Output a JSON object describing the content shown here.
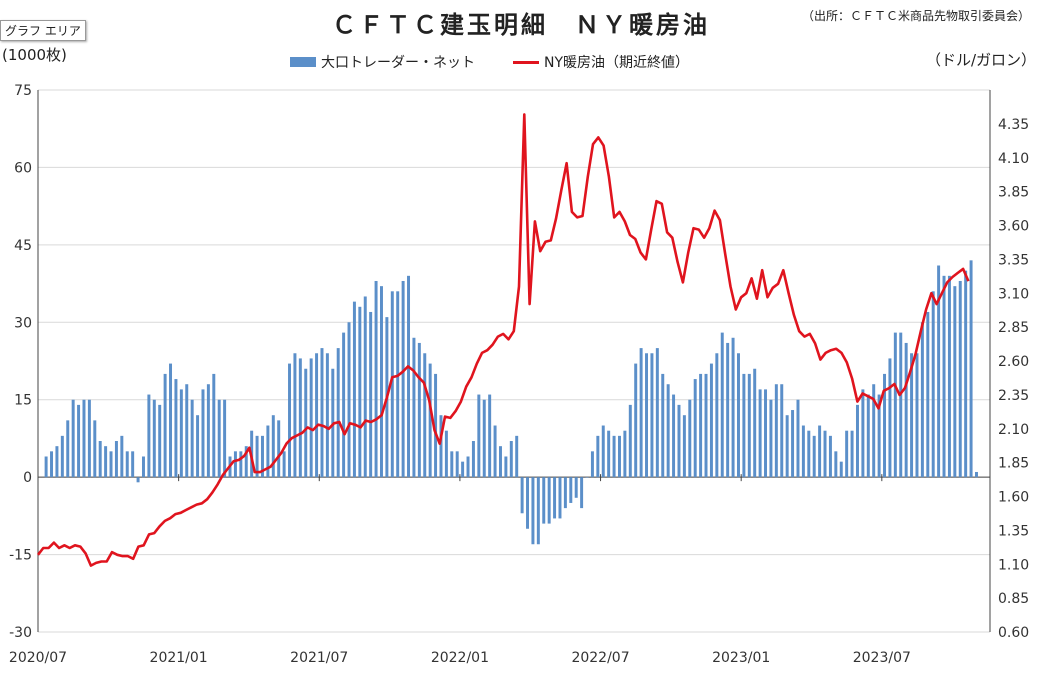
{
  "header": {
    "title": "ＣＦＴＣ建玉明細　ＮＹ暖房油",
    "source": "（出所：ＣＦＴＣ米商品先物取引委員会）",
    "area_tag": "グラフ エリア",
    "unit_left": "(1000枚)",
    "unit_right": "（ドル/ガロン）"
  },
  "legend": {
    "bar_label": "大口トレーダー・ネット",
    "line_label": "NY暖房油（期近終値）"
  },
  "colors": {
    "bar": "#5b8fc9",
    "line": "#e0141e",
    "grid": "#d9d9d9"
  },
  "chart_data": {
    "type": "bar+line",
    "title": "ＣＦＴＣ建玉明細　ＮＹ暖房油",
    "x_ticks": [
      "2020/07",
      "2021/01",
      "2021/07",
      "2022/01",
      "2022/07",
      "2023/01",
      "2023/07"
    ],
    "x_range": [
      0,
      176
    ],
    "y_left": {
      "label": "(1000枚)",
      "range": [
        -30,
        75
      ],
      "ticks": [
        -30,
        -15,
        0,
        15,
        30,
        45,
        60,
        75
      ]
    },
    "y_right": {
      "label": "（ドル/ガロン）",
      "range": [
        0.6,
        4.6
      ],
      "ticks": [
        "0.60",
        "0.85",
        "1.10",
        "1.35",
        "1.60",
        "1.85",
        "2.10",
        "2.35",
        "2.60",
        "2.85",
        "3.10",
        "3.35",
        "3.60",
        "3.85",
        "4.10",
        "4.35"
      ]
    },
    "series": [
      {
        "name": "大口トレーダー・ネット",
        "axis": "left",
        "kind": "bar",
        "values": [
          4,
          5,
          6,
          8,
          11,
          15,
          14,
          15,
          15,
          11,
          7,
          6,
          5,
          7,
          8,
          5,
          5,
          -1,
          4,
          16,
          15,
          14,
          20,
          22,
          19,
          17,
          18,
          15,
          12,
          17,
          18,
          20,
          15,
          15,
          4,
          5,
          5,
          6,
          9,
          8,
          8,
          10,
          12,
          11,
          5,
          22,
          24,
          23,
          21,
          23,
          24,
          25,
          24,
          21,
          25,
          28,
          30,
          34,
          33,
          35,
          32,
          38,
          37,
          31,
          36,
          36,
          38,
          39,
          27,
          26,
          24,
          22,
          20,
          12,
          9,
          5,
          5,
          3,
          4,
          7,
          16,
          15,
          16,
          10,
          6,
          4,
          7,
          8,
          -7,
          -10,
          -13,
          -13,
          -9,
          -9,
          -8,
          -8,
          -6,
          -5,
          -4,
          -6,
          0,
          5,
          8,
          10,
          9,
          8,
          8,
          9,
          14,
          22,
          25,
          24,
          24,
          25,
          20,
          18,
          16,
          14,
          12,
          15,
          19,
          20,
          20,
          22,
          24,
          28,
          26,
          27,
          24,
          20,
          20,
          21,
          17,
          17,
          15,
          18,
          18,
          12,
          13,
          15,
          10,
          9,
          8,
          10,
          9,
          8,
          5,
          3,
          9,
          9,
          14,
          17,
          16,
          18,
          16,
          20,
          23,
          28,
          28,
          26,
          24,
          24,
          30,
          32,
          36,
          41,
          39,
          39,
          37,
          38,
          40,
          42,
          1
        ]
      },
      {
        "name": "NY暖房油（期近終値）",
        "axis": "right",
        "kind": "line",
        "values": [
          1.17,
          1.22,
          1.22,
          1.26,
          1.22,
          1.24,
          1.22,
          1.24,
          1.23,
          1.18,
          1.09,
          1.11,
          1.12,
          1.12,
          1.19,
          1.17,
          1.16,
          1.16,
          1.14,
          1.23,
          1.24,
          1.32,
          1.33,
          1.38,
          1.42,
          1.44,
          1.47,
          1.48,
          1.5,
          1.52,
          1.54,
          1.55,
          1.58,
          1.63,
          1.69,
          1.76,
          1.81,
          1.86,
          1.87,
          1.9,
          1.96,
          1.78,
          1.78,
          1.8,
          1.82,
          1.87,
          1.92,
          1.99,
          2.03,
          2.05,
          2.07,
          2.11,
          2.09,
          2.13,
          2.12,
          2.1,
          2.14,
          2.15,
          2.06,
          2.14,
          2.13,
          2.11,
          2.16,
          2.15,
          2.17,
          2.2,
          2.33,
          2.48,
          2.49,
          2.52,
          2.56,
          2.53,
          2.48,
          2.44,
          2.31,
          2.09,
          1.99,
          2.19,
          2.18,
          2.23,
          2.3,
          2.41,
          2.48,
          2.58,
          2.66,
          2.68,
          2.72,
          2.78,
          2.8,
          2.76,
          2.82,
          3.15,
          4.42,
          3.02,
          3.63,
          3.41,
          3.48,
          3.49,
          3.65,
          3.86,
          4.06,
          3.7,
          3.66,
          3.67,
          3.96,
          4.2,
          4.25,
          4.19,
          3.96,
          3.66,
          3.7,
          3.63,
          3.53,
          3.5,
          3.4,
          3.35,
          3.57,
          3.78,
          3.76,
          3.55,
          3.51,
          3.33,
          3.18,
          3.4,
          3.58,
          3.57,
          3.51,
          3.58,
          3.71,
          3.64,
          3.39,
          3.15,
          2.98,
          3.07,
          3.1,
          3.21,
          3.06,
          3.27,
          3.07,
          3.14,
          3.17,
          3.27,
          3.1,
          2.94,
          2.82,
          2.78,
          2.8,
          2.73,
          2.61,
          2.66,
          2.68,
          2.69,
          2.66,
          2.59,
          2.47,
          2.3,
          2.36,
          2.34,
          2.32,
          2.25,
          2.38,
          2.4,
          2.43,
          2.35,
          2.4,
          2.52,
          2.65,
          2.82,
          2.98,
          3.1,
          3.02,
          3.1,
          3.18,
          3.22,
          3.25,
          3.28,
          3.19
        ]
      }
    ]
  }
}
